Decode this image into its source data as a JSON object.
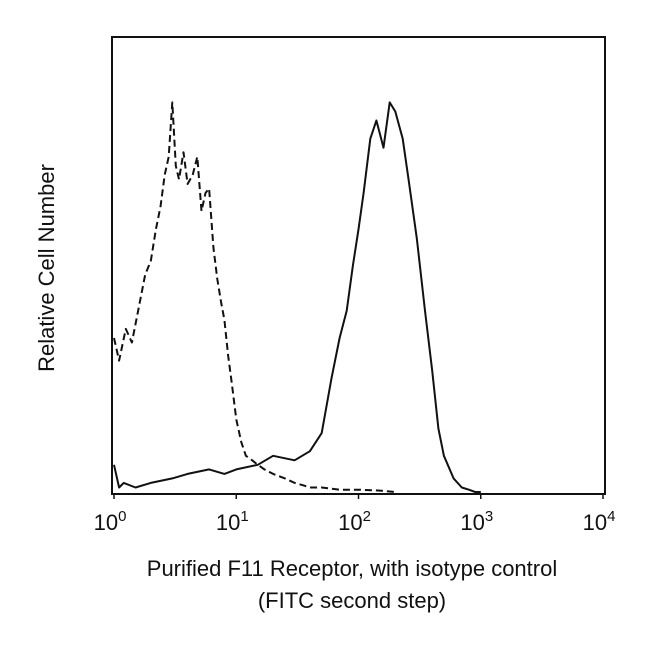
{
  "chart_data": {
    "type": "line",
    "xscale": "log",
    "xlim": [
      1,
      10000
    ],
    "ylim": [
      0,
      100
    ],
    "grid": false,
    "legend": "none",
    "ylabel": "Relative Cell Number",
    "xlabel_lines": [
      "Purified F11 Receptor, with isotype control",
      "(FITC second step)"
    ],
    "xticks": [
      {
        "base": "10",
        "exp": "0",
        "value": 1
      },
      {
        "base": "10",
        "exp": "1",
        "value": 10
      },
      {
        "base": "10",
        "exp": "2",
        "value": 100
      },
      {
        "base": "10",
        "exp": "3",
        "value": 1000
      },
      {
        "base": "10",
        "exp": "4",
        "value": 10000
      }
    ],
    "series": [
      {
        "style": "dashed",
        "color": "#111111",
        "x": [
          1.0,
          1.1,
          1.25,
          1.4,
          1.6,
          1.8,
          2.0,
          2.2,
          2.4,
          2.6,
          2.8,
          3.0,
          3.2,
          3.4,
          3.7,
          4.0,
          4.4,
          4.8,
          5.2,
          5.6,
          6.0,
          6.5,
          7.0,
          7.5,
          8.0,
          8.6,
          9.2,
          10.0,
          11.0,
          12.0,
          13.5,
          15.0,
          17.0,
          20.0,
          25.0,
          30.0,
          35.0,
          40.0,
          50.0,
          70.0,
          100.0,
          150.0,
          200.0
        ],
        "y": [
          34,
          29,
          36,
          33,
          41,
          48,
          51,
          58,
          63,
          70,
          74,
          86,
          72,
          69,
          75,
          68,
          70,
          74,
          62,
          66,
          67,
          54,
          47,
          42,
          38,
          30,
          24,
          16,
          11,
          8,
          7,
          6,
          5,
          4,
          3,
          2,
          1.5,
          1,
          1,
          0.5,
          0.5,
          0.3,
          0
        ]
      },
      {
        "style": "solid",
        "color": "#111111",
        "x": [
          1.0,
          1.1,
          1.2,
          1.5,
          2.0,
          3.0,
          4.0,
          6.0,
          8.0,
          10.0,
          15.0,
          20.0,
          30.0,
          40.0,
          50.0,
          60.0,
          70.0,
          80.0,
          90.0,
          100.0,
          110.0,
          125.0,
          140.0,
          160.0,
          180.0,
          200.0,
          230.0,
          260.0,
          300.0,
          350.0,
          400.0,
          450.0,
          500.0,
          600.0,
          700.0,
          800.0,
          900.0,
          1000.0
        ],
        "y": [
          6,
          1,
          2,
          1,
          2,
          3,
          4,
          5,
          4,
          5,
          6,
          8,
          7,
          9,
          13,
          25,
          34,
          40,
          50,
          58,
          66,
          78,
          82,
          76,
          86,
          84,
          78,
          68,
          56,
          40,
          27,
          14,
          8,
          3,
          1,
          0.5,
          0,
          0
        ]
      }
    ]
  }
}
